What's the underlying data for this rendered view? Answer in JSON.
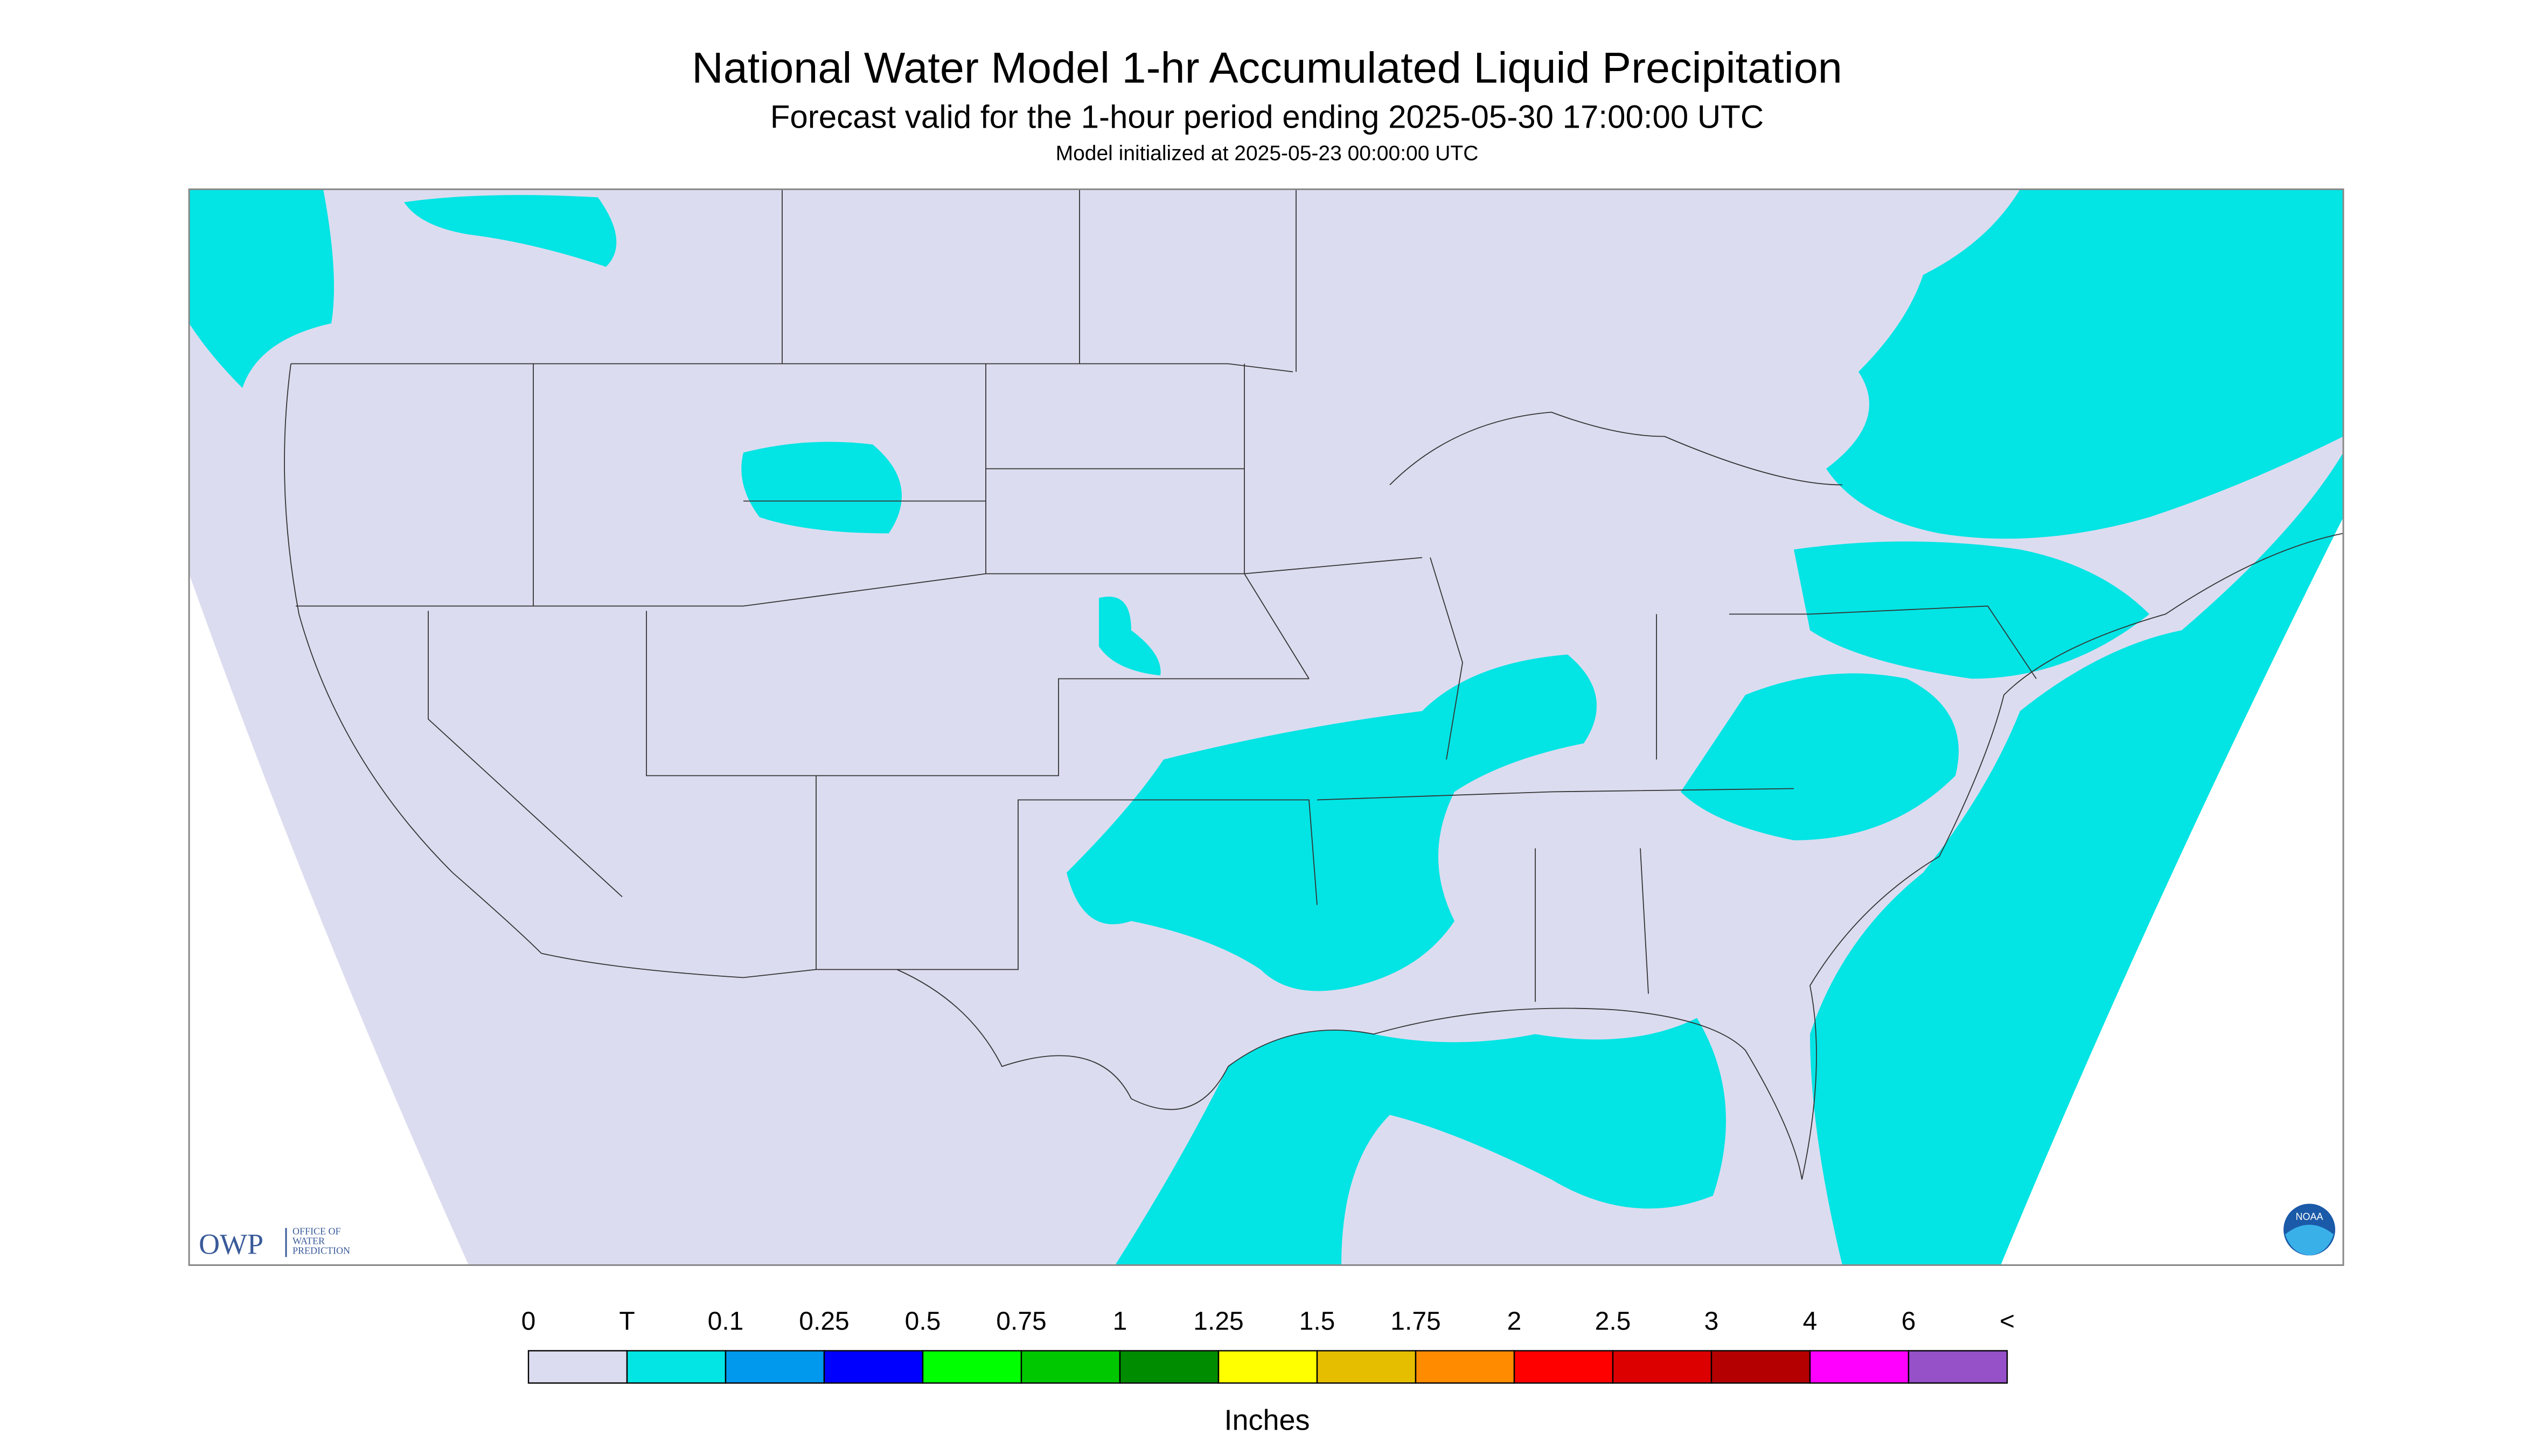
{
  "header": {
    "title": "National Water Model 1-hr Accumulated Liquid Precipitation",
    "subtitle": "Forecast valid for the 1-hour period ending 2025-05-30 17:00:00 UTC",
    "initialized": "Model initialized at 2025-05-23 00:00:00 UTC"
  },
  "logos": {
    "owp": "OWP",
    "owp_name": [
      "OFFICE OF",
      "WATER",
      "PREDICTION"
    ],
    "noaa": "NOAA"
  },
  "legend": {
    "labels": [
      "0",
      "T",
      "0.1",
      "0.25",
      "0.5",
      "0.75",
      "1",
      "1.25",
      "1.5",
      "1.75",
      "2",
      "2.5",
      "3",
      "4",
      "6",
      "<"
    ],
    "colors": [
      "#dcdcf0",
      "#03e4e4",
      "#0099ee",
      "#0000ff",
      "#00ff00",
      "#00c800",
      "#008c00",
      "#ffff00",
      "#e6be00",
      "#ff8c00",
      "#ff0000",
      "#dc0000",
      "#b40000",
      "#ff00ff",
      "#9650c8"
    ],
    "unit": "Inches"
  }
}
